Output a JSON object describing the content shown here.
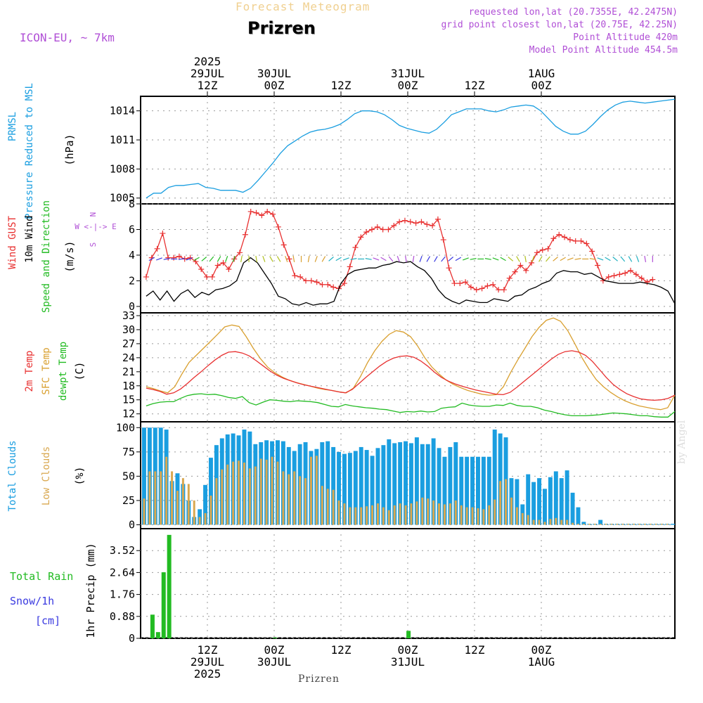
{
  "header": {
    "faint_title": "Forecast Meteogram",
    "location": "Prizren",
    "model": "ICON-EU, ~ 7km",
    "requested": "requested lon,lat (20.7355E, 42.2475N)",
    "grid_point": "grid point closest lon,lat (20.75E, 42.25N)",
    "point_altitude": "Point Altitude 420m",
    "model_altitude": "Model Point Altitude 454.5m"
  },
  "footer": {
    "location": "Prizren",
    "credit": "by Angel"
  },
  "time_axis": {
    "top_labels": [
      {
        "h": 12,
        "lines": [
          "2025",
          "29JUL",
          "12Z"
        ]
      },
      {
        "h": 24,
        "lines": [
          "30JUL",
          "00Z"
        ]
      },
      {
        "h": 36,
        "lines": [
          "12Z"
        ]
      },
      {
        "h": 48,
        "lines": [
          "31JUL",
          "00Z"
        ]
      },
      {
        "h": 60,
        "lines": [
          "12Z"
        ]
      },
      {
        "h": 72,
        "lines": [
          "1AUG",
          "00Z"
        ]
      }
    ],
    "bottom_labels": [
      {
        "h": 12,
        "lines": [
          "12Z",
          "29JUL",
          "2025"
        ]
      },
      {
        "h": 24,
        "lines": [
          "00Z",
          "30JUL"
        ]
      },
      {
        "h": 36,
        "lines": [
          "12Z"
        ]
      },
      {
        "h": 48,
        "lines": [
          "00Z",
          "31JUL"
        ]
      },
      {
        "h": 60,
        "lines": [
          "12Z"
        ]
      },
      {
        "h": 72,
        "lines": [
          "00Z",
          "1AUG"
        ]
      }
    ]
  },
  "colors": {
    "pressure": "#1a9ee0",
    "gust": "#e83030",
    "wind": "#000000",
    "wind_dir": "#22bb22",
    "temp2m": "#e83030",
    "sfc_temp": "#d9a030",
    "dewpt": "#22bb22",
    "total_clouds": "#1a9ee0",
    "low_clouds": "#d9a850",
    "rain": "#22bb22",
    "snow": "#3a3ae0",
    "compass": "#b04fd6"
  },
  "chart_data": [
    {
      "type": "line",
      "name": "pressure",
      "labels": [
        "PRMSL",
        "Pressure Reduced to MSL",
        "(hPa)"
      ],
      "yticks": [
        1005,
        1008,
        1011,
        1014
      ],
      "ylim": [
        1004.4,
        1015.5
      ],
      "x_start_hours": 1,
      "y": [
        1005.0,
        1005.5,
        1005.5,
        1006.1,
        1006.3,
        1006.3,
        1006.4,
        1006.5,
        1006.1,
        1006.0,
        1005.8,
        1005.8,
        1005.8,
        1005.6,
        1006.0,
        1006.8,
        1007.7,
        1008.6,
        1009.6,
        1010.4,
        1010.9,
        1011.4,
        1011.8,
        1012.0,
        1012.1,
        1012.3,
        1012.6,
        1013.1,
        1013.7,
        1014.0,
        1014.0,
        1013.9,
        1013.6,
        1013.1,
        1012.5,
        1012.2,
        1012.0,
        1011.8,
        1011.7,
        1012.1,
        1012.8,
        1013.6,
        1013.9,
        1014.2,
        1014.2,
        1014.2,
        1014.0,
        1013.9,
        1014.1,
        1014.4,
        1014.5,
        1014.6,
        1014.5,
        1014.0,
        1013.2,
        1012.4,
        1011.9,
        1011.6,
        1011.6,
        1011.9,
        1012.6,
        1013.4,
        1014.1,
        1014.6,
        1014.9,
        1015.0,
        1014.9,
        1014.8,
        1014.9,
        1015.0,
        1015.1,
        1015.2
      ]
    },
    {
      "type": "line",
      "name": "wind",
      "labels": [
        "Wind GUST",
        "10m Wind",
        "Speed and Direction",
        "(m/s)"
      ],
      "compass": [
        "N",
        "W <-|-> E",
        "S"
      ],
      "yticks": [
        0,
        2,
        4,
        6,
        8
      ],
      "ylim": [
        -0.5,
        8
      ],
      "x_start_hours": 1,
      "gust": [
        2.3,
        3.8,
        4.5,
        5.7,
        3.8,
        3.8,
        3.9,
        3.7,
        3.8,
        3.5,
        2.9,
        2.3,
        2.3,
        3.2,
        3.4,
        2.9,
        3.7,
        4.2,
        5.6,
        7.4,
        7.3,
        7.1,
        7.4,
        7.2,
        6.2,
        4.8,
        3.7,
        2.4,
        2.3,
        2.0,
        2.0,
        1.9,
        1.7,
        1.7,
        1.5,
        1.4,
        1.8,
        3.1,
        4.6,
        5.4,
        5.8,
        6.0,
        6.2,
        6.0,
        6.0,
        6.3,
        6.6,
        6.7,
        6.6,
        6.5,
        6.6,
        6.4,
        6.3,
        6.8,
        5.2,
        3.0,
        1.8,
        1.8,
        1.9,
        1.5,
        1.3,
        1.4,
        1.6,
        1.7,
        1.3,
        1.3,
        2.2,
        2.7,
        3.2,
        2.8,
        3.4,
        4.2,
        4.4,
        4.5,
        5.3,
        5.6,
        5.4,
        5.2,
        5.1,
        5.1,
        4.9,
        4.3,
        3.2,
        2.0,
        2.3,
        2.4,
        2.5,
        2.6,
        2.8,
        2.5,
        2.2,
        1.9,
        2.1
      ],
      "speed": [
        0.8,
        1.2,
        0.5,
        1.2,
        0.4,
        1.0,
        1.3,
        0.7,
        1.1,
        0.9,
        1.3,
        1.4,
        1.6,
        2.0,
        3.4,
        3.8,
        3.4,
        2.6,
        1.8,
        0.8,
        0.6,
        0.2,
        0.1,
        0.3,
        0.1,
        0.2,
        0.2,
        0.4,
        1.8,
        2.5,
        2.8,
        2.9,
        3.0,
        3.0,
        3.2,
        3.3,
        3.5,
        3.4,
        3.5,
        3.1,
        2.8,
        2.2,
        1.3,
        0.7,
        0.4,
        0.2,
        0.5,
        0.4,
        0.3,
        0.3,
        0.6,
        0.5,
        0.4,
        0.8,
        0.9,
        1.3,
        1.5,
        1.8,
        2.0,
        2.6,
        2.8,
        2.7,
        2.7,
        2.5,
        2.6,
        2.3,
        2.0,
        1.9,
        1.8,
        1.8,
        1.8,
        1.9,
        1.8,
        1.7,
        1.5,
        1.2,
        0.2
      ],
      "directions_deg": [
        240,
        250,
        260,
        270,
        260,
        250,
        240,
        230,
        220,
        210,
        200,
        200,
        190,
        180,
        170,
        160,
        150,
        150,
        160,
        170,
        180,
        190,
        200,
        210,
        230,
        240,
        250,
        260,
        270,
        280,
        290,
        300,
        320,
        340,
        350,
        10,
        20,
        30,
        30,
        40,
        50,
        60,
        70,
        80,
        90,
        100,
        110,
        120,
        130,
        150,
        170,
        200,
        210,
        220,
        230,
        240,
        250,
        260,
        270,
        280,
        290,
        300,
        310,
        320,
        330,
        340,
        350,
        0
      ]
    },
    {
      "type": "line",
      "name": "temperature",
      "labels": [
        "2m Temp",
        "SFC Temp",
        "dewpt Temp",
        "(C)"
      ],
      "yticks": [
        12,
        15,
        18,
        21,
        24,
        27,
        30,
        33
      ],
      "ylim": [
        10.3,
        33.6
      ],
      "x_start_hours": 1,
      "temp2m": [
        17.5,
        17.2,
        16.8,
        16.2,
        16.5,
        17.3,
        18.5,
        19.8,
        21.0,
        22.3,
        23.5,
        24.5,
        25.2,
        25.3,
        25.0,
        24.4,
        23.4,
        22.3,
        21.2,
        20.3,
        19.6,
        19.1,
        18.6,
        18.2,
        17.9,
        17.6,
        17.3,
        17.0,
        16.7,
        16.5,
        17.2,
        18.5,
        19.8,
        21.0,
        22.2,
        23.2,
        23.9,
        24.3,
        24.4,
        24.1,
        23.3,
        22.2,
        20.9,
        19.8,
        19.0,
        18.4,
        17.9,
        17.5,
        17.1,
        16.8,
        16.5,
        16.2,
        16.1,
        16.6,
        17.7,
        18.9,
        20.1,
        21.3,
        22.5,
        23.7,
        24.7,
        25.3,
        25.5,
        25.2,
        24.5,
        23.2,
        21.5,
        19.8,
        18.3,
        17.2,
        16.3,
        15.7,
        15.2,
        15.0,
        14.9,
        15.0,
        15.3,
        16.0
      ],
      "sfc_temp": [
        17.8,
        17.4,
        16.9,
        16.5,
        17.8,
        20.5,
        23.0,
        24.5,
        26.0,
        27.5,
        29.0,
        30.6,
        31.0,
        30.7,
        28.5,
        26.0,
        23.8,
        22.0,
        20.8,
        19.9,
        19.2,
        18.7,
        18.3,
        17.9,
        17.5,
        17.2,
        17.0,
        16.7,
        16.5,
        17.5,
        20.0,
        23.0,
        25.5,
        27.5,
        29.0,
        29.8,
        29.5,
        28.5,
        26.5,
        24.0,
        22.0,
        20.5,
        19.2,
        18.3,
        17.6,
        17.0,
        16.6,
        16.2,
        16.0,
        16.1,
        17.8,
        20.8,
        23.5,
        26.0,
        28.5,
        30.5,
        32.0,
        32.5,
        31.8,
        29.8,
        27.0,
        24.0,
        21.5,
        19.3,
        17.8,
        16.6,
        15.6,
        14.8,
        14.2,
        13.7,
        13.4,
        13.1,
        12.9,
        13.3,
        16.0
      ],
      "dewpt": [
        13.7,
        14.2,
        14.5,
        14.6,
        14.6,
        15.3,
        15.9,
        16.2,
        16.3,
        16.1,
        16.2,
        15.9,
        15.5,
        15.3,
        15.7,
        14.4,
        13.9,
        14.5,
        15.0,
        14.9,
        14.7,
        14.6,
        14.8,
        14.7,
        14.6,
        14.4,
        14.0,
        13.6,
        13.5,
        14.0,
        13.7,
        13.5,
        13.3,
        13.2,
        13.0,
        12.9,
        12.6,
        12.3,
        12.5,
        12.4,
        12.6,
        12.4,
        12.5,
        13.2,
        13.4,
        13.5,
        14.3,
        13.9,
        13.7,
        13.6,
        13.6,
        13.9,
        13.8,
        14.3,
        13.8,
        13.6,
        13.6,
        13.3,
        12.8,
        12.5,
        12.1,
        11.8,
        11.6,
        11.6,
        11.6,
        11.7,
        11.8,
        12.0,
        12.2,
        12.1,
        12.0,
        11.8,
        11.6,
        11.6,
        11.4,
        11.3,
        11.3,
        12.5
      ]
    },
    {
      "type": "bar",
      "name": "clouds",
      "labels": [
        "Total Clouds",
        "Low Clouds",
        "(%)"
      ],
      "yticks": [
        0,
        25,
        50,
        75,
        100
      ],
      "ylim": [
        -4,
        106
      ],
      "x_start_hours": 0,
      "total": [
        100,
        100,
        100,
        100,
        98,
        45,
        53,
        42,
        25,
        8,
        16,
        41,
        69,
        82,
        89,
        93,
        94,
        92,
        98,
        96,
        83,
        85,
        87,
        86,
        87,
        86,
        80,
        76,
        83,
        85,
        76,
        78,
        85,
        86,
        80,
        75,
        73,
        74,
        76,
        80,
        77,
        71,
        79,
        82,
        88,
        84,
        85,
        86,
        84,
        90,
        83,
        83,
        89,
        79,
        70,
        80,
        85,
        70,
        70,
        70,
        70,
        70,
        70,
        98,
        94,
        90,
        48,
        47,
        21,
        52,
        44,
        48,
        37,
        49,
        55,
        48,
        56,
        33,
        18,
        3,
        1,
        1,
        5,
        1,
        1,
        1,
        1,
        1,
        1,
        1,
        1,
        1,
        1,
        1,
        1,
        1
      ],
      "low": [
        27,
        55,
        55,
        55,
        70,
        55,
        35,
        48,
        42,
        25,
        8,
        12,
        30,
        48,
        57,
        62,
        65,
        66,
        64,
        58,
        60,
        68,
        67,
        70,
        65,
        55,
        52,
        55,
        50,
        48,
        70,
        71,
        40,
        37,
        36,
        25,
        22,
        18,
        18,
        18,
        19,
        20,
        22,
        18,
        15,
        20,
        22,
        20,
        22,
        24,
        28,
        27,
        25,
        22,
        21,
        22,
        25,
        20,
        18,
        18,
        17,
        16,
        20,
        26,
        45,
        47,
        28,
        18,
        12,
        10,
        5,
        5,
        3,
        6,
        7,
        5,
        5,
        2,
        1,
        1,
        1,
        1,
        1,
        1,
        1,
        1,
        1,
        1,
        1,
        1,
        1,
        1,
        1,
        1,
        1
      ]
    },
    {
      "type": "bar",
      "name": "precipitation",
      "labels": [
        "Total  Rain",
        "Snow/1h",
        "[cm]",
        "1hr Precip (mm)"
      ],
      "yticks": [
        0,
        0.88,
        1.76,
        2.64,
        3.52
      ],
      "ylim": [
        0,
        4.4
      ],
      "bars": [
        {
          "h": 1,
          "value": 0.95
        },
        {
          "h": 2,
          "value": 0.25
        },
        {
          "h": 3,
          "value": 2.65
        },
        {
          "h": 4,
          "value": 4.15
        },
        {
          "h": 23,
          "value": 0.03
        },
        {
          "h": 47,
          "value": 0.3
        }
      ]
    }
  ]
}
